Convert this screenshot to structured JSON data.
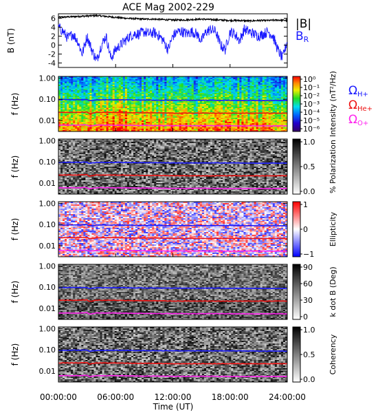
{
  "title": "ACE Mag 2002-229",
  "xlabel": "Time (UT)",
  "x_ticks": [
    "00:00:00",
    "06:00:00",
    "12:00:00",
    "18:00:00",
    "24:00:00"
  ],
  "colors": {
    "blue": "#1a1aff",
    "red": "#ee1111",
    "magenta": "#ff22ee",
    "black": "#000000"
  },
  "chart_data": [
    {
      "type": "line",
      "ylabel": "B (nT)",
      "xlim": [
        0,
        24
      ],
      "ylim": [
        -5,
        7
      ],
      "y_ticks": [
        "6",
        "4",
        "2",
        "0",
        "-2",
        "-4"
      ],
      "legend": [
        "|B|",
        "B_R"
      ],
      "series": [
        {
          "name": "|B|",
          "color": "#000000",
          "x": [
            0,
            1,
            2,
            3,
            4,
            5,
            6,
            7,
            8,
            9,
            10,
            11,
            12,
            13,
            14,
            15,
            16,
            17,
            18,
            19,
            20,
            21,
            22,
            23,
            24
          ],
          "values": [
            6.2,
            6.3,
            6.4,
            6.5,
            6.6,
            6.4,
            6.2,
            6.0,
            5.9,
            5.8,
            5.8,
            5.7,
            5.6,
            5.6,
            5.7,
            5.8,
            5.7,
            5.6,
            5.5,
            5.5,
            5.4,
            5.5,
            5.5,
            5.6,
            5.5
          ]
        },
        {
          "name": "B_R",
          "color": "#1a1aff",
          "x": [
            0,
            0.5,
            1,
            1.5,
            2,
            2.5,
            3,
            3.5,
            4,
            4.5,
            5,
            5.5,
            6,
            6.5,
            7,
            7.5,
            8,
            8.5,
            9,
            9.5,
            10,
            10.5,
            11,
            11.5,
            12,
            12.5,
            13,
            13.5,
            14,
            14.5,
            15,
            15.5,
            16,
            16.5,
            17,
            17.5,
            18,
            18.5,
            19,
            19.5,
            20,
            20.5,
            21,
            21.5,
            22,
            22.5,
            23,
            23.5,
            24
          ],
          "values": [
            4,
            3,
            1.5,
            2.5,
            1,
            -2,
            2,
            -1,
            -3.5,
            0,
            2,
            -3,
            -1,
            0,
            1,
            2,
            2.5,
            2.5,
            3,
            2.5,
            2.8,
            2.2,
            1,
            -1,
            2,
            3,
            3,
            2.5,
            3,
            2.5,
            1,
            3,
            3.5,
            3,
            0,
            -1,
            3,
            2.5,
            1,
            3.5,
            3,
            2.5,
            2,
            2.5,
            3,
            2,
            -1,
            -3,
            1
          ]
        }
      ]
    },
    {
      "type": "heatmap",
      "ylabel": "f (Hz)",
      "y_scale": "log",
      "ylim": [
        0.003,
        1.2
      ],
      "y_ticks": [
        "1.00",
        "0.10",
        "0.01"
      ],
      "colorbar": {
        "label": "Intensity (nT²/Hz)",
        "scale": "log",
        "range": [
          1e-06,
          1
        ],
        "ticks": [
          "10⁰",
          "10⁻¹",
          "10⁻²",
          "10⁻³",
          "10⁻⁴",
          "10⁻⁵",
          "10⁻⁶"
        ]
      },
      "colormap": "rainbow",
      "legend": [
        "Ω_H+",
        "Ω_He+",
        "Ω_O+"
      ]
    },
    {
      "type": "heatmap",
      "ylabel": "f (Hz)",
      "y_scale": "log",
      "ylim": [
        0.003,
        1.2
      ],
      "y_ticks": [
        "1.00",
        "0.10",
        "0.01"
      ],
      "colorbar": {
        "label": "% Polarization",
        "range": [
          0,
          1
        ],
        "ticks": [
          "1.0",
          "0.5",
          "0.0"
        ]
      },
      "colormap": "grayscale"
    },
    {
      "type": "heatmap",
      "ylabel": "f (Hz)",
      "y_scale": "log",
      "ylim": [
        0.003,
        1.2
      ],
      "y_ticks": [
        "1.00",
        "0.10",
        "0.01"
      ],
      "colorbar": {
        "label": "Ellipticity",
        "range": [
          -1,
          1
        ],
        "ticks": [
          "1",
          "0",
          "−1"
        ]
      },
      "colormap": "blue-white-red"
    },
    {
      "type": "heatmap",
      "ylabel": "f (Hz)",
      "y_scale": "log",
      "ylim": [
        0.003,
        1.2
      ],
      "y_ticks": [
        "1.00",
        "0.10",
        "0.01"
      ],
      "colorbar": {
        "label": "k dot B (Deg)",
        "range": [
          0,
          90
        ],
        "ticks": [
          "90",
          "60",
          "30",
          "0"
        ]
      },
      "colormap": "grayscale"
    },
    {
      "type": "heatmap",
      "ylabel": "f (Hz)",
      "y_scale": "log",
      "ylim": [
        0.003,
        1.2
      ],
      "y_ticks": [
        "1.00",
        "0.10",
        "0.01"
      ],
      "colorbar": {
        "label": "Coherency",
        "range": [
          0,
          1
        ],
        "ticks": [
          "1.0",
          "0.5",
          "0.0"
        ]
      },
      "colormap": "grayscale"
    }
  ],
  "gyrofrequencies": {
    "x": [
      0,
      2,
      3,
      3.2,
      4,
      6,
      8,
      10,
      12,
      14,
      16,
      18,
      20,
      22,
      24
    ],
    "H+": [
      0.095,
      0.096,
      0.097,
      0.085,
      0.094,
      0.095,
      0.092,
      0.091,
      0.09,
      0.089,
      0.09,
      0.089,
      0.088,
      0.087,
      0.087
    ],
    "He+": [
      0.024,
      0.024,
      0.025,
      0.021,
      0.024,
      0.024,
      0.023,
      0.023,
      0.022,
      0.022,
      0.022,
      0.022,
      0.022,
      0.022,
      0.022
    ],
    "O+": [
      0.006,
      0.006,
      0.0062,
      0.0053,
      0.006,
      0.006,
      0.0058,
      0.0057,
      0.0056,
      0.0056,
      0.0056,
      0.0055,
      0.0055,
      0.0055,
      0.0055
    ]
  },
  "gyro_labels": {
    "h": "Ω",
    "h_sub": "H+",
    "he": "Ω",
    "he_sub": "He+",
    "o": "Ω",
    "o_sub": "O+"
  },
  "legend_labels": {
    "absb": "|B|",
    "br": "B",
    "br_sub": "R"
  }
}
